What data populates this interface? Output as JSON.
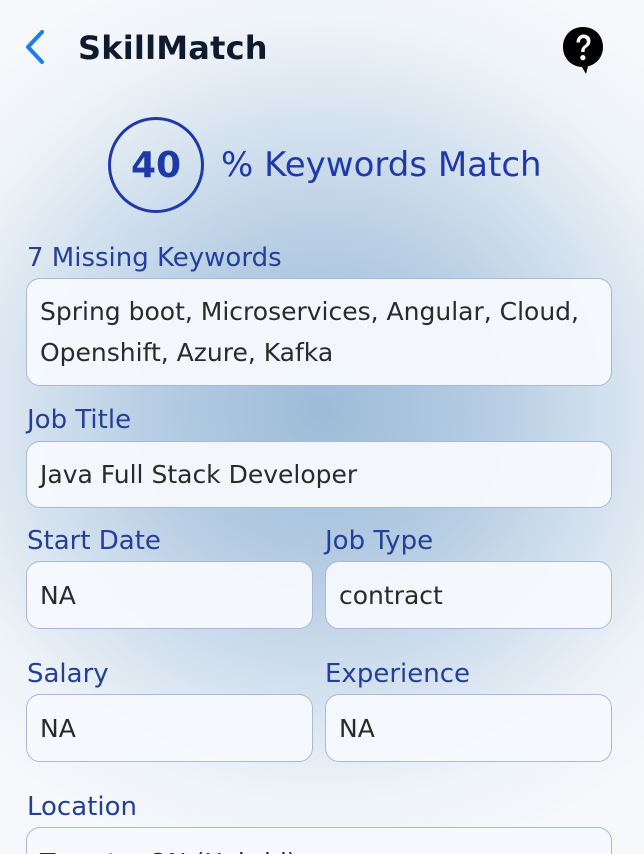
{
  "header": {
    "title": "SkillMatch",
    "back_icon": "chevron-left-icon",
    "help_icon": "help-bubble-icon"
  },
  "match": {
    "percent": "40",
    "label": "% Keywords Match"
  },
  "missing_keywords": {
    "label": "7 Missing Keywords",
    "value": "Spring boot, Microservices, Angular, Cloud, Openshift, Azure, Kafka"
  },
  "job_title": {
    "label": "Job Title",
    "value": "Java Full Stack Developer"
  },
  "start_date": {
    "label": "Start Date",
    "value": "NA"
  },
  "job_type": {
    "label": "Job Type",
    "value": "contract"
  },
  "salary": {
    "label": "Salary",
    "value": "NA"
  },
  "experience": {
    "label": "Experience",
    "value": "NA"
  },
  "location": {
    "label": "Location",
    "value": "Toronto, ON (Hybrid)"
  },
  "colors": {
    "accent": "#1f3aa8",
    "label": "#243f97",
    "back": "#1a7ff0",
    "title": "#0f1a2e"
  }
}
